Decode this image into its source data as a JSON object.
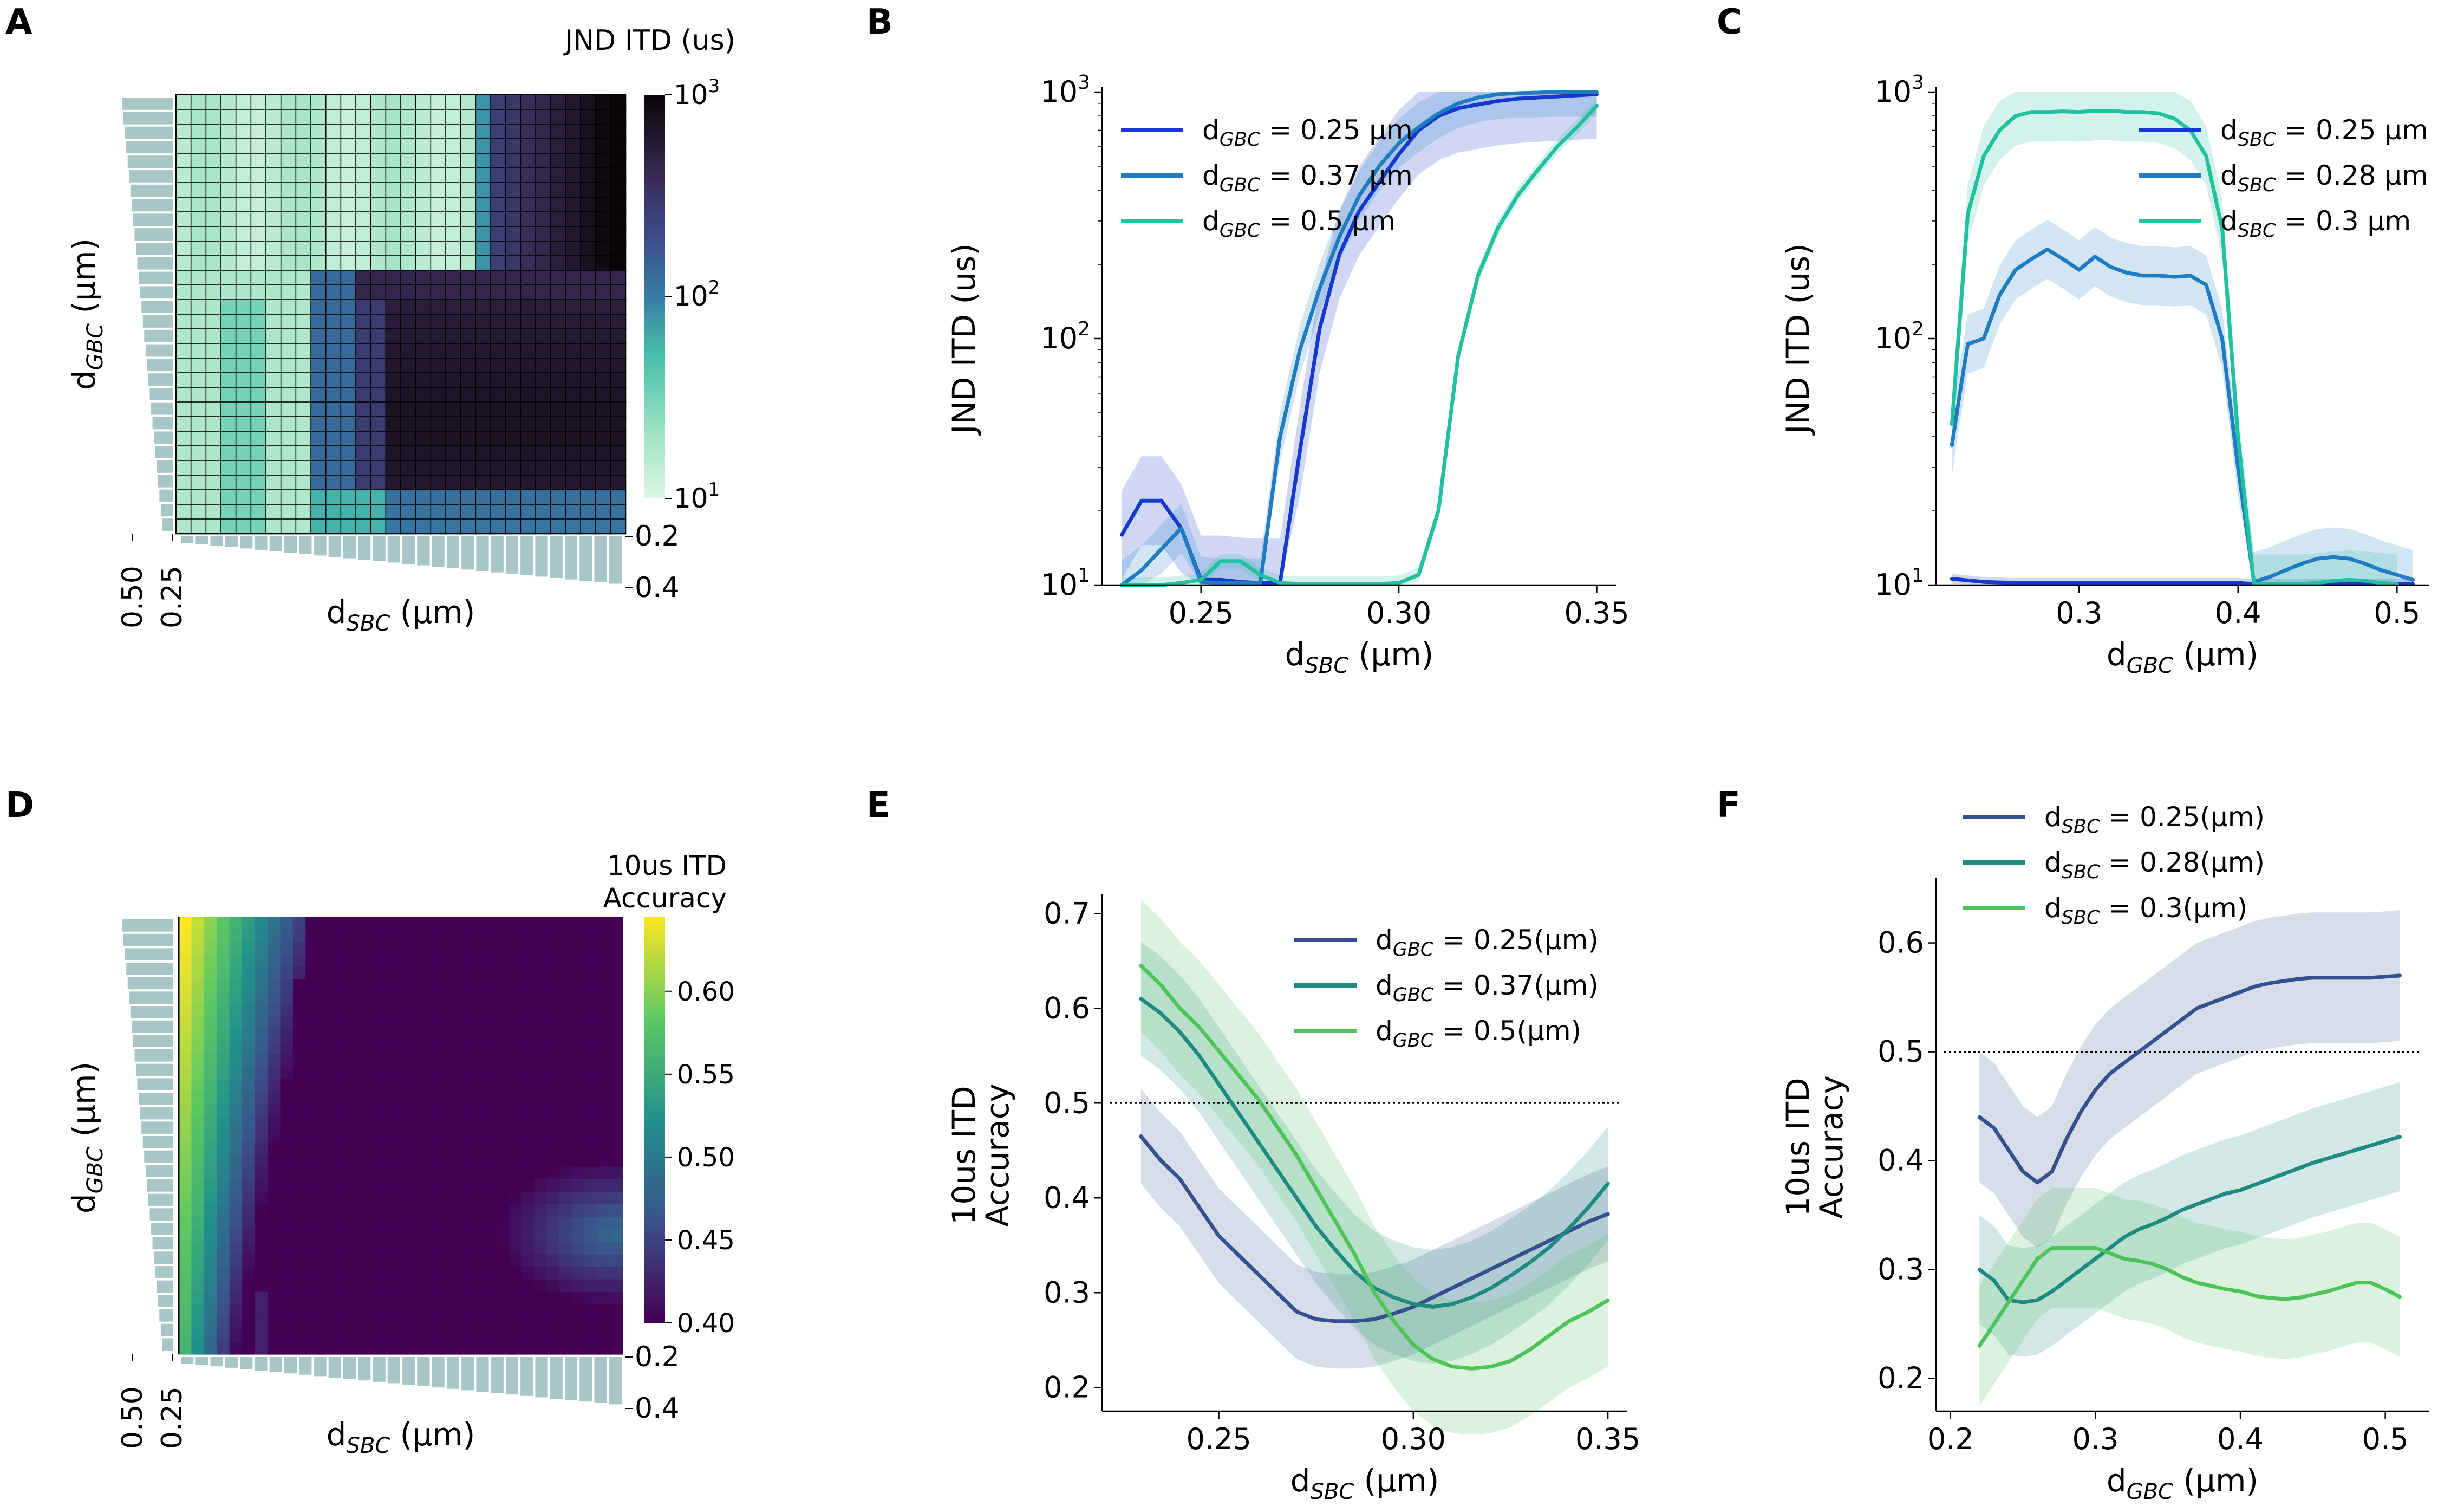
{
  "chart_data": [
    {
      "panel": "A",
      "type": "heatmap",
      "title": "JND ITD (us)",
      "xlabel_base": "d",
      "xlabel_sub": "SBC",
      "xlabel_unit": " (μm)",
      "ylabel_base": "d",
      "ylabel_sub": "GBC",
      "ylabel_unit": " (μm)",
      "colorbar": {
        "scale": "log",
        "range": [
          10,
          1000
        ],
        "ticks": [
          "10",
          "100",
          "1000"
        ],
        "tick_base": "10",
        "tick_exps": [
          "1",
          "2",
          "3"
        ]
      },
      "side_ticks_bottom": [
        "0.2",
        "0.4"
      ],
      "side_ticks_left": [
        "0.50",
        "0.25"
      ],
      "cmap": "mako_r",
      "grid_lines": true
    },
    {
      "panel": "B",
      "type": "line",
      "ylabel": "JND ITD (us)",
      "xlabel_base": "d",
      "xlabel_sub": "SBC",
      "xlabel_unit": " (μm)",
      "yscale": "log",
      "ylim": [
        10,
        1000
      ],
      "ytick_base": "10",
      "ytick_exps": [
        "1",
        "2",
        "3"
      ],
      "xlim": [
        0.225,
        0.355
      ],
      "xticks": [
        "0.25",
        "0.30",
        "0.35"
      ],
      "legend_loc": "upper-left",
      "series": [
        {
          "sub": "GBC",
          "value": " = 0.25 μm",
          "color": "#1539cc",
          "x": [
            0.23,
            0.235,
            0.24,
            0.245,
            0.25,
            0.255,
            0.26,
            0.265,
            0.27,
            0.275,
            0.28,
            0.285,
            0.29,
            0.295,
            0.3,
            0.305,
            0.31,
            0.315,
            0.32,
            0.325,
            0.33,
            0.335,
            0.34,
            0.345,
            0.35
          ],
          "y": [
            16,
            22,
            22,
            17,
            10.5,
            10.5,
            10.3,
            10.2,
            10.2,
            35,
            110,
            220,
            330,
            430,
            560,
            700,
            800,
            860,
            890,
            920,
            940,
            950,
            960,
            970,
            980
          ],
          "band": 0.18
        },
        {
          "sub": "GBC",
          "value": " = 0.37 μm",
          "color": "#1f7bc2",
          "x": [
            0.23,
            0.235,
            0.24,
            0.245,
            0.25,
            0.255,
            0.26,
            0.265,
            0.27,
            0.275,
            0.28,
            0.285,
            0.29,
            0.295,
            0.3,
            0.305,
            0.31,
            0.315,
            0.32,
            0.325,
            0.33,
            0.335,
            0.34,
            0.345,
            0.35
          ],
          "y": [
            10,
            11.5,
            14,
            17,
            10.3,
            10.2,
            10.2,
            10.2,
            40,
            90,
            160,
            260,
            380,
            500,
            620,
            720,
            820,
            900,
            950,
            980,
            990,
            995,
            1000,
            1000,
            1000
          ],
          "band": 0.1
        },
        {
          "sub": "GBC",
          "value": " = 0.5 μm",
          "color": "#21c0a0",
          "x": [
            0.23,
            0.235,
            0.24,
            0.245,
            0.25,
            0.255,
            0.26,
            0.265,
            0.27,
            0.275,
            0.28,
            0.285,
            0.29,
            0.295,
            0.3,
            0.305,
            0.31,
            0.315,
            0.32,
            0.325,
            0.33,
            0.335,
            0.34,
            0.345,
            0.35
          ],
          "y": [
            10,
            10,
            10,
            10.2,
            10.5,
            12.5,
            12.5,
            11,
            10.2,
            10.1,
            10.1,
            10.1,
            10.1,
            10.1,
            10.2,
            11,
            20,
            85,
            180,
            280,
            380,
            480,
            600,
            720,
            880
          ],
          "band": 0.03
        }
      ]
    },
    {
      "panel": "C",
      "type": "line",
      "ylabel": "JND ITD (us)",
      "xlabel_base": "d",
      "xlabel_sub": "GBC",
      "xlabel_unit": " (μm)",
      "yscale": "log",
      "ylim": [
        10,
        1000
      ],
      "ytick_base": "10",
      "ytick_exps": [
        "1",
        "2",
        "3"
      ],
      "xlim": [
        0.21,
        0.52
      ],
      "xticks": [
        "0.3",
        "0.4",
        "0.5"
      ],
      "legend_loc": "upper-right",
      "series": [
        {
          "sub": "SBC",
          "value": " = 0.25 μm",
          "color": "#1539cc",
          "x": [
            0.22,
            0.24,
            0.26,
            0.28,
            0.3,
            0.32,
            0.34,
            0.36,
            0.38,
            0.39,
            0.4,
            0.41,
            0.42,
            0.44,
            0.46,
            0.48,
            0.5,
            0.51
          ],
          "y": [
            10.6,
            10.3,
            10.2,
            10.2,
            10.2,
            10.2,
            10.2,
            10.2,
            10.2,
            10.2,
            10.2,
            10.1,
            10.1,
            10.1,
            10.1,
            10.1,
            10.1,
            10.1
          ],
          "band": 0.02
        },
        {
          "sub": "SBC",
          "value": " = 0.28 μm",
          "color": "#1f7bc2",
          "x": [
            0.22,
            0.225,
            0.23,
            0.24,
            0.25,
            0.26,
            0.27,
            0.28,
            0.29,
            0.3,
            0.31,
            0.32,
            0.33,
            0.34,
            0.35,
            0.36,
            0.37,
            0.38,
            0.39,
            0.4,
            0.41,
            0.42,
            0.43,
            0.44,
            0.45,
            0.46,
            0.47,
            0.48,
            0.49,
            0.5,
            0.51
          ],
          "y": [
            37,
            60,
            95,
            100,
            150,
            190,
            210,
            230,
            210,
            190,
            215,
            195,
            185,
            180,
            180,
            178,
            180,
            165,
            100,
            30,
            10.3,
            10.8,
            11.5,
            12.2,
            12.8,
            13,
            12.8,
            12.2,
            11.5,
            11,
            10.5
          ],
          "band": 0.12
        },
        {
          "sub": "SBC",
          "value": " = 0.3 μm",
          "color": "#21c0a0",
          "x": [
            0.22,
            0.23,
            0.24,
            0.25,
            0.26,
            0.27,
            0.28,
            0.29,
            0.3,
            0.31,
            0.32,
            0.33,
            0.34,
            0.35,
            0.36,
            0.37,
            0.38,
            0.39,
            0.4,
            0.41,
            0.42,
            0.43,
            0.44,
            0.45,
            0.46,
            0.47,
            0.48,
            0.49,
            0.5
          ],
          "y": [
            45,
            320,
            550,
            700,
            800,
            830,
            830,
            835,
            830,
            840,
            840,
            830,
            830,
            820,
            780,
            700,
            550,
            280,
            40,
            10.1,
            10.1,
            10.1,
            10.1,
            10.2,
            10.4,
            10.5,
            10.4,
            10.2,
            10.1
          ],
          "band": 0.12
        }
      ]
    },
    {
      "panel": "D",
      "type": "heatmap",
      "title_lines": [
        "10us ITD",
        "Accuracy"
      ],
      "xlabel_base": "d",
      "xlabel_sub": "SBC",
      "xlabel_unit": " (μm)",
      "ylabel_base": "d",
      "ylabel_sub": "GBC",
      "ylabel_unit": " (μm)",
      "colorbar": {
        "scale": "linear",
        "range": [
          0.4,
          0.645
        ],
        "ticks": [
          "0.40",
          "0.45",
          "0.50",
          "0.55",
          "0.60"
        ]
      },
      "side_ticks_bottom": [
        "0.2",
        "0.4"
      ],
      "side_ticks_left": [
        "0.50",
        "0.25"
      ],
      "cmap": "viridis",
      "grid_lines": false
    },
    {
      "panel": "E",
      "type": "line",
      "ylabel_lines": [
        "10us ITD",
        "Accuracy"
      ],
      "xlabel_base": "d",
      "xlabel_sub": "SBC",
      "xlabel_unit": " (μm)",
      "yscale": "linear",
      "ylim": [
        0.175,
        0.715
      ],
      "yticks": [
        "0.2",
        "0.3",
        "0.4",
        "0.5",
        "0.6",
        "0.7"
      ],
      "xlim": [
        0.22,
        0.355
      ],
      "xticks": [
        "0.25",
        "0.30",
        "0.35"
      ],
      "hline": 0.5,
      "legend_loc": "upper-right",
      "series": [
        {
          "sub": "GBC",
          "value": " = 0.25(μm)",
          "color": "#35508f",
          "x": [
            0.23,
            0.235,
            0.24,
            0.245,
            0.25,
            0.255,
            0.26,
            0.265,
            0.27,
            0.275,
            0.28,
            0.285,
            0.29,
            0.295,
            0.3,
            0.305,
            0.31,
            0.315,
            0.32,
            0.325,
            0.33,
            0.335,
            0.34,
            0.345,
            0.35
          ],
          "y": [
            0.465,
            0.44,
            0.42,
            0.39,
            0.36,
            0.34,
            0.32,
            0.3,
            0.28,
            0.272,
            0.27,
            0.27,
            0.272,
            0.278,
            0.285,
            0.295,
            0.305,
            0.315,
            0.325,
            0.335,
            0.345,
            0.355,
            0.365,
            0.375,
            0.383
          ],
          "band": 0.05
        },
        {
          "sub": "GBC",
          "value": " = 0.37(μm)",
          "color": "#1f8a80",
          "x": [
            0.23,
            0.235,
            0.24,
            0.245,
            0.25,
            0.255,
            0.26,
            0.265,
            0.27,
            0.275,
            0.28,
            0.285,
            0.29,
            0.295,
            0.3,
            0.305,
            0.31,
            0.315,
            0.32,
            0.325,
            0.33,
            0.335,
            0.34,
            0.345,
            0.35
          ],
          "y": [
            0.61,
            0.595,
            0.575,
            0.55,
            0.52,
            0.49,
            0.46,
            0.43,
            0.4,
            0.37,
            0.345,
            0.322,
            0.305,
            0.295,
            0.288,
            0.285,
            0.288,
            0.295,
            0.305,
            0.318,
            0.332,
            0.348,
            0.368,
            0.39,
            0.415
          ],
          "band": 0.06
        },
        {
          "sub": "GBC",
          "value": " = 0.5(μm)",
          "color": "#4dc35a",
          "x": [
            0.23,
            0.235,
            0.24,
            0.245,
            0.25,
            0.255,
            0.26,
            0.265,
            0.27,
            0.275,
            0.28,
            0.285,
            0.29,
            0.295,
            0.3,
            0.305,
            0.31,
            0.315,
            0.32,
            0.325,
            0.33,
            0.335,
            0.34,
            0.345,
            0.35
          ],
          "y": [
            0.645,
            0.625,
            0.6,
            0.58,
            0.555,
            0.53,
            0.505,
            0.475,
            0.445,
            0.41,
            0.375,
            0.34,
            0.3,
            0.27,
            0.245,
            0.23,
            0.222,
            0.22,
            0.222,
            0.228,
            0.24,
            0.255,
            0.27,
            0.28,
            0.292
          ],
          "band": 0.07
        }
      ]
    },
    {
      "panel": "F",
      "type": "line",
      "ylabel_lines": [
        "10us ITD",
        "Accuracy"
      ],
      "xlabel_base": "d",
      "xlabel_sub": "GBC",
      "xlabel_unit": " (μm)",
      "yscale": "linear",
      "ylim": [
        0.17,
        0.655
      ],
      "yticks": [
        "0.2",
        "0.3",
        "0.4",
        "0.5",
        "0.6"
      ],
      "xlim": [
        0.19,
        0.53
      ],
      "xticks": [
        "0.2",
        "0.3",
        "0.4",
        "0.5"
      ],
      "hline": 0.5,
      "legend_loc": "top-left",
      "series": [
        {
          "sub": "SBC",
          "value": " = 0.25(μm)",
          "color": "#35508f",
          "x": [
            0.22,
            0.23,
            0.24,
            0.25,
            0.26,
            0.27,
            0.28,
            0.29,
            0.3,
            0.31,
            0.32,
            0.33,
            0.34,
            0.35,
            0.36,
            0.37,
            0.38,
            0.39,
            0.4,
            0.41,
            0.42,
            0.43,
            0.44,
            0.45,
            0.46,
            0.47,
            0.48,
            0.49,
            0.5,
            0.51
          ],
          "y": [
            0.44,
            0.43,
            0.41,
            0.39,
            0.38,
            0.39,
            0.42,
            0.445,
            0.465,
            0.48,
            0.49,
            0.5,
            0.51,
            0.52,
            0.53,
            0.54,
            0.545,
            0.55,
            0.555,
            0.56,
            0.563,
            0.565,
            0.567,
            0.568,
            0.568,
            0.568,
            0.568,
            0.568,
            0.569,
            0.57
          ],
          "band": 0.06
        },
        {
          "sub": "SBC",
          "value": " = 0.28(μm)",
          "color": "#1f8a80",
          "x": [
            0.22,
            0.23,
            0.24,
            0.25,
            0.26,
            0.27,
            0.28,
            0.29,
            0.3,
            0.31,
            0.32,
            0.33,
            0.34,
            0.35,
            0.36,
            0.37,
            0.38,
            0.39,
            0.4,
            0.41,
            0.42,
            0.43,
            0.44,
            0.45,
            0.46,
            0.47,
            0.48,
            0.49,
            0.5,
            0.51
          ],
          "y": [
            0.3,
            0.29,
            0.272,
            0.27,
            0.272,
            0.28,
            0.29,
            0.3,
            0.31,
            0.32,
            0.33,
            0.337,
            0.342,
            0.348,
            0.355,
            0.36,
            0.365,
            0.37,
            0.373,
            0.378,
            0.383,
            0.388,
            0.393,
            0.398,
            0.402,
            0.406,
            0.41,
            0.414,
            0.418,
            0.422
          ],
          "band": 0.05
        },
        {
          "sub": "SBC",
          "value": " = 0.3(μm)",
          "color": "#4dc35a",
          "x": [
            0.22,
            0.23,
            0.24,
            0.25,
            0.26,
            0.27,
            0.28,
            0.29,
            0.3,
            0.31,
            0.32,
            0.33,
            0.34,
            0.35,
            0.36,
            0.37,
            0.38,
            0.39,
            0.4,
            0.41,
            0.42,
            0.43,
            0.44,
            0.45,
            0.46,
            0.47,
            0.48,
            0.49,
            0.5,
            0.51
          ],
          "y": [
            0.23,
            0.25,
            0.27,
            0.29,
            0.31,
            0.32,
            0.32,
            0.32,
            0.32,
            0.315,
            0.31,
            0.308,
            0.305,
            0.3,
            0.293,
            0.288,
            0.285,
            0.282,
            0.28,
            0.276,
            0.274,
            0.273,
            0.274,
            0.277,
            0.28,
            0.284,
            0.288,
            0.288,
            0.282,
            0.275
          ],
          "band": 0.055
        }
      ]
    }
  ]
}
